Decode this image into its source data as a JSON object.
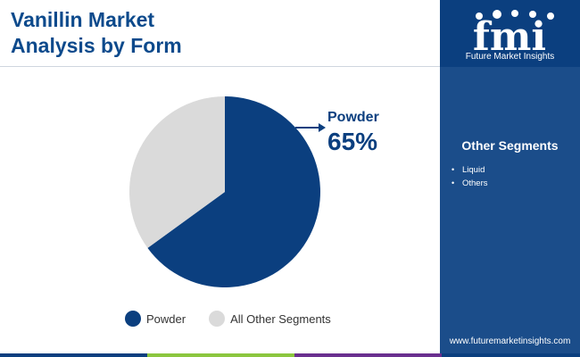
{
  "header": {
    "title_line1": "Vanillin Market",
    "title_line2": "Analysis by Form"
  },
  "brand": {
    "logo_text": "fmi",
    "subtitle": "Future Market Insights",
    "website": "www.futuremarketinsights.com"
  },
  "sidebar": {
    "segments_title": "Other Segments",
    "segments": [
      "Liquid",
      "Others"
    ]
  },
  "chart_data": {
    "type": "pie",
    "title": "",
    "slices": [
      {
        "label": "Powder",
        "value": 65,
        "color": "#0b3f7f"
      },
      {
        "label": "All Other Segments",
        "value": 35,
        "color": "#dadada"
      }
    ],
    "callout": {
      "label": "Powder",
      "value": "65%"
    },
    "legend": "bottom"
  },
  "colors": {
    "accent": "#0d4a8c",
    "sidebar": "#0b3f7f",
    "bar_blue": "#0b3f7f",
    "bar_green": "#8cc63f",
    "bar_purple": "#6a2f8f"
  }
}
